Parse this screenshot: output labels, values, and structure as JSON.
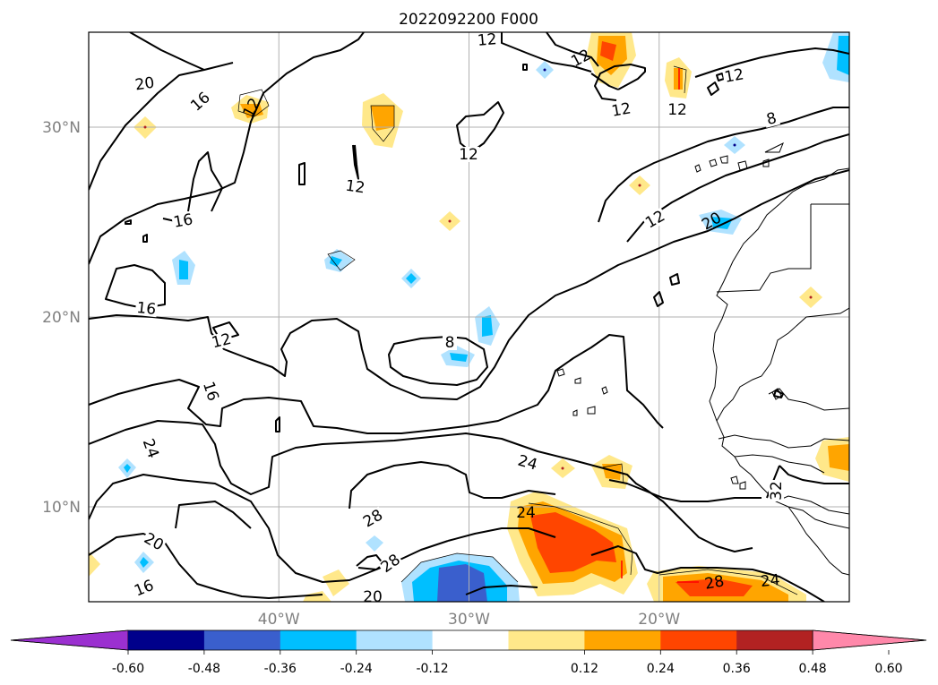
{
  "title": "2022092200 F000",
  "map": {
    "lon_range": [
      -50,
      -10
    ],
    "lat_range": [
      5,
      35
    ],
    "lat_ticks": [
      {
        "lat": 30,
        "label": "30°N"
      },
      {
        "lat": 20,
        "label": "20°N"
      },
      {
        "lat": 10,
        "label": "10°N"
      }
    ],
    "lon_ticks": [
      {
        "lon": -40,
        "label": "40°W"
      },
      {
        "lon": -30,
        "label": "30°W"
      },
      {
        "lon": -20,
        "label": "20°W"
      }
    ],
    "gridlines": true,
    "contour_labels": [
      "20",
      "16",
      "12",
      "12",
      "12",
      "12",
      "12",
      "12",
      "8",
      "16",
      "12",
      "16",
      "12",
      "12",
      "20",
      "16",
      "12",
      "8",
      "16",
      "24",
      "24",
      "28",
      "24",
      "28",
      "20",
      "32",
      "28",
      "24",
      "20",
      "16"
    ]
  },
  "colorbar": {
    "ticks": [
      "-0.60",
      "-0.48",
      "-0.36",
      "-0.24",
      "-0.12",
      "0.12",
      "0.24",
      "0.36",
      "0.48",
      "0.60"
    ],
    "colors": [
      "#9b30d0",
      "#00008b",
      "#3a5fcd",
      "#00bfff",
      "#b0e2ff",
      "#ffffff",
      "#ffe88a",
      "#ffa500",
      "#ff4500",
      "#b22222",
      "#ff88aa"
    ],
    "extend": "both"
  }
}
